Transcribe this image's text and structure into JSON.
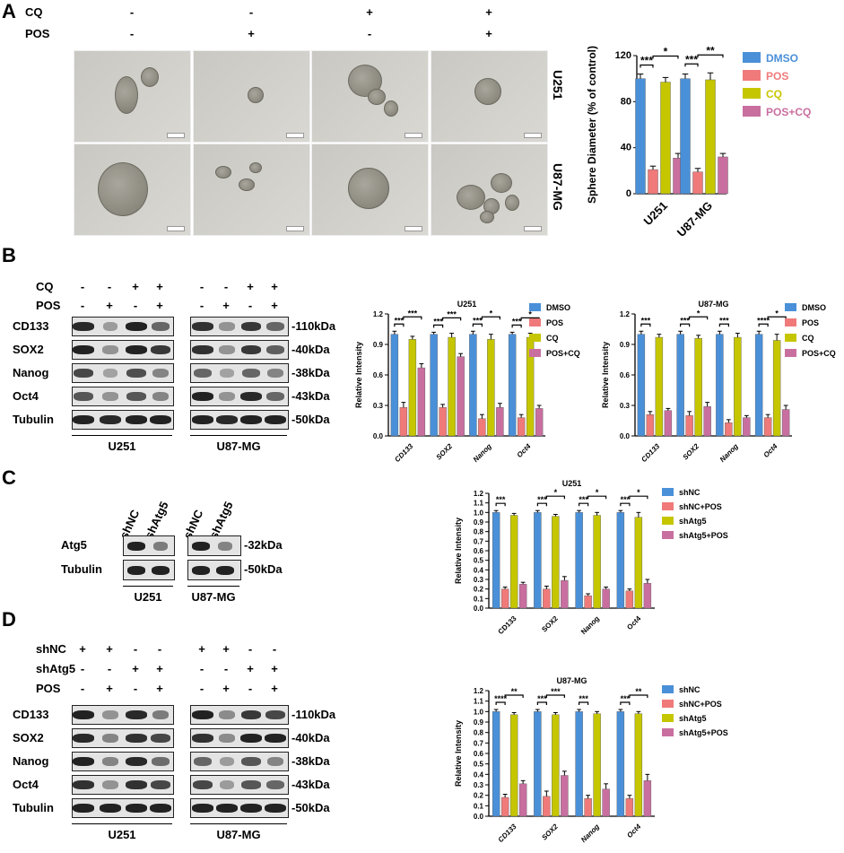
{
  "panels": {
    "a": "A",
    "b": "B",
    "c": "C",
    "d": "D"
  },
  "colors": {
    "dmso": "#4a90d9",
    "pos": "#f07a7a",
    "cq": "#c6c600",
    "poscq": "#c96fa0"
  },
  "panelA": {
    "rows": [
      {
        "label": "CQ",
        "values": [
          "-",
          "-",
          "+",
          "+"
        ]
      },
      {
        "label": "POS",
        "values": [
          "-",
          "+",
          "-",
          "+"
        ]
      }
    ],
    "cell_lines": [
      "U251",
      "U87-MG"
    ]
  },
  "panelB": {
    "rows": [
      {
        "label": "CQ",
        "values": [
          "-",
          "-",
          "+",
          "+",
          "-",
          "-",
          "+",
          "+"
        ]
      },
      {
        "label": "POS",
        "values": [
          "-",
          "+",
          "-",
          "+",
          "-",
          "+",
          "-",
          "+"
        ]
      }
    ],
    "proteins": [
      "CD133",
      "SOX2",
      "Nanog",
      "Oct4",
      "Tubulin"
    ],
    "kda": [
      "-110kDa",
      "-40kDa",
      "-38kDa",
      "-43kDa",
      "-50kDa"
    ],
    "cell_lines": [
      "U251",
      "U87-MG"
    ]
  },
  "panelC": {
    "lanes": [
      "shNC",
      "shAtg5",
      "shNC",
      "shAtg5"
    ],
    "proteins": [
      "Atg5",
      "Tubulin"
    ],
    "kda": [
      "-32kDa",
      "-50kDa"
    ],
    "cell_lines": [
      "U251",
      "U87-MG"
    ]
  },
  "panelD": {
    "rows": [
      {
        "label": "shNC",
        "values": [
          "+",
          "+",
          "-",
          "-",
          "+",
          "+",
          "-",
          "-"
        ]
      },
      {
        "label": "shAtg5",
        "values": [
          "-",
          "-",
          "+",
          "+",
          "-",
          "-",
          "+",
          "+"
        ]
      },
      {
        "label": "POS",
        "values": [
          "-",
          "+",
          "-",
          "+",
          "-",
          "+",
          "-",
          "+"
        ]
      }
    ],
    "proteins": [
      "CD133",
      "SOX2",
      "Nanog",
      "Oct4",
      "Tubulin"
    ],
    "kda": [
      "-110kDa",
      "-40kDa",
      "-38kDa",
      "-43kDa",
      "-50kDa"
    ],
    "cell_lines": [
      "U251",
      "U87-MG"
    ]
  },
  "chart_data": [
    {
      "id": "A",
      "type": "bar",
      "title": "",
      "ylabel": "Sphere Diameter (% of control)",
      "ylim": [
        0,
        120
      ],
      "yticks": [
        0,
        40,
        80,
        120
      ],
      "categories": [
        "U251",
        "U87-MG"
      ],
      "series": [
        {
          "name": "DMSO",
          "values": [
            100,
            100
          ],
          "err": [
            4,
            4
          ]
        },
        {
          "name": "POS",
          "values": [
            21,
            19
          ],
          "err": [
            3,
            3
          ]
        },
        {
          "name": "CQ",
          "values": [
            97,
            99
          ],
          "err": [
            4,
            6
          ]
        },
        {
          "name": "POS+CQ",
          "values": [
            31,
            32
          ],
          "err": [
            4,
            3
          ]
        }
      ],
      "sig": [
        {
          "cat": 0,
          "from": 0,
          "to": 1,
          "label": "***",
          "level": 1
        },
        {
          "cat": 0,
          "from": 1,
          "to": 3,
          "label": "*",
          "level": 2
        },
        {
          "cat": 1,
          "from": 0,
          "to": 1,
          "label": "***",
          "level": 1
        },
        {
          "cat": 1,
          "from": 1,
          "to": 3,
          "label": "**",
          "level": 2
        }
      ]
    },
    {
      "id": "B1",
      "type": "bar",
      "title": "U251",
      "ylabel": "Relative Intensity",
      "ylim": [
        0,
        1.2
      ],
      "yticks": [
        "0.0",
        "0.3",
        "0.6",
        "0.9",
        "1.2"
      ],
      "categories": [
        "CD133",
        "SOX2",
        "Nanog",
        "Oct4"
      ],
      "series": [
        {
          "name": "DMSO",
          "values": [
            1.0,
            1.0,
            1.0,
            1.0
          ],
          "err": [
            0.03,
            0.02,
            0.03,
            0.02
          ]
        },
        {
          "name": "POS",
          "values": [
            0.28,
            0.28,
            0.17,
            0.18
          ],
          "err": [
            0.05,
            0.03,
            0.04,
            0.03
          ]
        },
        {
          "name": "CQ",
          "values": [
            0.95,
            0.97,
            0.95,
            0.97
          ],
          "err": [
            0.03,
            0.04,
            0.05,
            0.04
          ]
        },
        {
          "name": "POS+CQ",
          "values": [
            0.67,
            0.78,
            0.28,
            0.27
          ],
          "err": [
            0.04,
            0.03,
            0.04,
            0.03
          ]
        }
      ],
      "sig": [
        {
          "cat": 0,
          "from": 0,
          "to": 1,
          "label": "***",
          "level": 1
        },
        {
          "cat": 0,
          "from": 1,
          "to": 3,
          "label": "***",
          "level": 2
        },
        {
          "cat": 1,
          "from": 0,
          "to": 1,
          "label": "***",
          "level": 1
        },
        {
          "cat": 1,
          "from": 1,
          "to": 3,
          "label": "***",
          "level": 2
        },
        {
          "cat": 2,
          "from": 0,
          "to": 1,
          "label": "***",
          "level": 1
        },
        {
          "cat": 2,
          "from": 1,
          "to": 3,
          "label": "*",
          "level": 2
        },
        {
          "cat": 3,
          "from": 0,
          "to": 1,
          "label": "***",
          "level": 1
        },
        {
          "cat": 3,
          "from": 1,
          "to": 3,
          "label": "*",
          "level": 2
        }
      ]
    },
    {
      "id": "B2",
      "type": "bar",
      "title": "U87-MG",
      "ylabel": "Relative Intensity",
      "ylim": [
        0,
        1.2
      ],
      "yticks": [
        "0.0",
        "0.3",
        "0.6",
        "0.9",
        "1.2"
      ],
      "categories": [
        "CD133",
        "SOX2",
        "Nanog",
        "Oct4"
      ],
      "series": [
        {
          "name": "DMSO",
          "values": [
            1.0,
            1.0,
            1.0,
            1.0
          ],
          "err": [
            0.03,
            0.03,
            0.03,
            0.03
          ]
        },
        {
          "name": "POS",
          "values": [
            0.21,
            0.2,
            0.13,
            0.18
          ],
          "err": [
            0.03,
            0.04,
            0.03,
            0.03
          ]
        },
        {
          "name": "CQ",
          "values": [
            0.97,
            0.96,
            0.97,
            0.94
          ],
          "err": [
            0.03,
            0.03,
            0.04,
            0.06
          ]
        },
        {
          "name": "POS+CQ",
          "values": [
            0.25,
            0.29,
            0.18,
            0.26
          ],
          "err": [
            0.02,
            0.04,
            0.02,
            0.04
          ]
        }
      ],
      "sig": [
        {
          "cat": 0,
          "from": 0,
          "to": 1,
          "label": "***",
          "level": 1
        },
        {
          "cat": 1,
          "from": 0,
          "to": 1,
          "label": "***",
          "level": 1
        },
        {
          "cat": 1,
          "from": 1,
          "to": 3,
          "label": "*",
          "level": 2
        },
        {
          "cat": 2,
          "from": 0,
          "to": 1,
          "label": "***",
          "level": 1
        },
        {
          "cat": 3,
          "from": 0,
          "to": 1,
          "label": "****",
          "level": 1
        },
        {
          "cat": 3,
          "from": 1,
          "to": 3,
          "label": "*",
          "level": 2
        }
      ]
    },
    {
      "id": "C",
      "type": "bar",
      "title": "U251",
      "ylabel": "Relative Intensity",
      "ylim": [
        0,
        1.2
      ],
      "yticks": [
        "0.0",
        "0.1",
        "0.2",
        "0.3",
        "0.4",
        "0.5",
        "0.6",
        "0.7",
        "0.8",
        "0.9",
        "1.0",
        "1.1",
        "1.2"
      ],
      "categories": [
        "CD133",
        "SOX2",
        "Nanog",
        "Oct4"
      ],
      "series": [
        {
          "name": "shNC",
          "values": [
            1.0,
            1.0,
            1.0,
            1.0
          ],
          "err": [
            0.02,
            0.02,
            0.02,
            0.02
          ]
        },
        {
          "name": "shNC+POS",
          "values": [
            0.2,
            0.2,
            0.13,
            0.18
          ],
          "err": [
            0.02,
            0.03,
            0.02,
            0.02
          ]
        },
        {
          "name": "shAtg5",
          "values": [
            0.97,
            0.96,
            0.97,
            0.95
          ],
          "err": [
            0.02,
            0.02,
            0.03,
            0.05
          ]
        },
        {
          "name": "shAtg5+POS",
          "values": [
            0.25,
            0.29,
            0.2,
            0.26
          ],
          "err": [
            0.02,
            0.04,
            0.02,
            0.04
          ]
        }
      ],
      "sig": [
        {
          "cat": 0,
          "from": 0,
          "to": 1,
          "label": "***",
          "level": 1
        },
        {
          "cat": 1,
          "from": 0,
          "to": 1,
          "label": "***",
          "level": 1
        },
        {
          "cat": 1,
          "from": 1,
          "to": 3,
          "label": "*",
          "level": 2
        },
        {
          "cat": 2,
          "from": 0,
          "to": 1,
          "label": "***",
          "level": 1
        },
        {
          "cat": 2,
          "from": 1,
          "to": 3,
          "label": "*",
          "level": 2
        },
        {
          "cat": 3,
          "from": 0,
          "to": 1,
          "label": "***",
          "level": 1
        },
        {
          "cat": 3,
          "from": 1,
          "to": 3,
          "label": "*",
          "level": 2
        }
      ]
    },
    {
      "id": "D",
      "type": "bar",
      "title": "U87-MG",
      "ylabel": "Relative Intensity",
      "ylim": [
        0,
        1.2
      ],
      "yticks": [
        "0.0",
        "0.1",
        "0.2",
        "0.3",
        "0.4",
        "0.5",
        "0.6",
        "0.7",
        "0.8",
        "0.9",
        "1.0",
        "1.1",
        "1.2"
      ],
      "categories": [
        "CD133",
        "SOX2",
        "Nanog",
        "Oct4"
      ],
      "series": [
        {
          "name": "shNC",
          "values": [
            1.0,
            1.0,
            1.0,
            1.0
          ],
          "err": [
            0.02,
            0.02,
            0.02,
            0.02
          ]
        },
        {
          "name": "shNC+POS",
          "values": [
            0.18,
            0.19,
            0.17,
            0.17
          ],
          "err": [
            0.03,
            0.05,
            0.03,
            0.03
          ]
        },
        {
          "name": "shAtg5",
          "values": [
            0.97,
            0.97,
            0.98,
            0.98
          ],
          "err": [
            0.02,
            0.02,
            0.02,
            0.02
          ]
        },
        {
          "name": "shAtg5+POS",
          "values": [
            0.31,
            0.39,
            0.26,
            0.34
          ],
          "err": [
            0.03,
            0.04,
            0.05,
            0.06
          ]
        }
      ],
      "sig": [
        {
          "cat": 0,
          "from": 0,
          "to": 1,
          "label": "****",
          "level": 1
        },
        {
          "cat": 0,
          "from": 1,
          "to": 3,
          "label": "**",
          "level": 2
        },
        {
          "cat": 1,
          "from": 0,
          "to": 1,
          "label": "***",
          "level": 1
        },
        {
          "cat": 1,
          "from": 1,
          "to": 3,
          "label": "***",
          "level": 2
        },
        {
          "cat": 2,
          "from": 0,
          "to": 1,
          "label": "***",
          "level": 1
        },
        {
          "cat": 3,
          "from": 0,
          "to": 1,
          "label": "***",
          "level": 1
        },
        {
          "cat": 3,
          "from": 1,
          "to": 3,
          "label": "**",
          "level": 2
        }
      ]
    }
  ]
}
